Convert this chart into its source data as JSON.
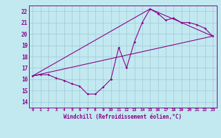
{
  "xlabel": "Windchill (Refroidissement éolien,°C)",
  "xlim": [
    -0.5,
    23.5
  ],
  "ylim": [
    13.5,
    22.5
  ],
  "xticks": [
    0,
    1,
    2,
    3,
    4,
    5,
    6,
    7,
    8,
    9,
    10,
    11,
    12,
    13,
    14,
    15,
    16,
    17,
    18,
    19,
    20,
    21,
    22,
    23
  ],
  "yticks": [
    14,
    15,
    16,
    17,
    18,
    19,
    20,
    21,
    22
  ],
  "bg_color": "#c2e8f0",
  "line_color": "#880088",
  "grid_color": "#a0c8d8",
  "series1_x": [
    0,
    1,
    2,
    3,
    4,
    5,
    6,
    7,
    8,
    9,
    10,
    11,
    12,
    13,
    14,
    15,
    16,
    17,
    18,
    19,
    20,
    21,
    22,
    23
  ],
  "series1_y": [
    16.3,
    16.4,
    16.4,
    16.1,
    15.9,
    15.6,
    15.4,
    14.7,
    14.7,
    15.3,
    16.0,
    18.8,
    17.0,
    19.3,
    21.0,
    22.2,
    21.8,
    21.2,
    21.4,
    21.0,
    21.0,
    20.8,
    20.5,
    19.8
  ],
  "series2_x": [
    0,
    23
  ],
  "series2_y": [
    16.3,
    19.8
  ],
  "series3_x": [
    0,
    15,
    23
  ],
  "series3_y": [
    16.3,
    22.2,
    19.8
  ]
}
